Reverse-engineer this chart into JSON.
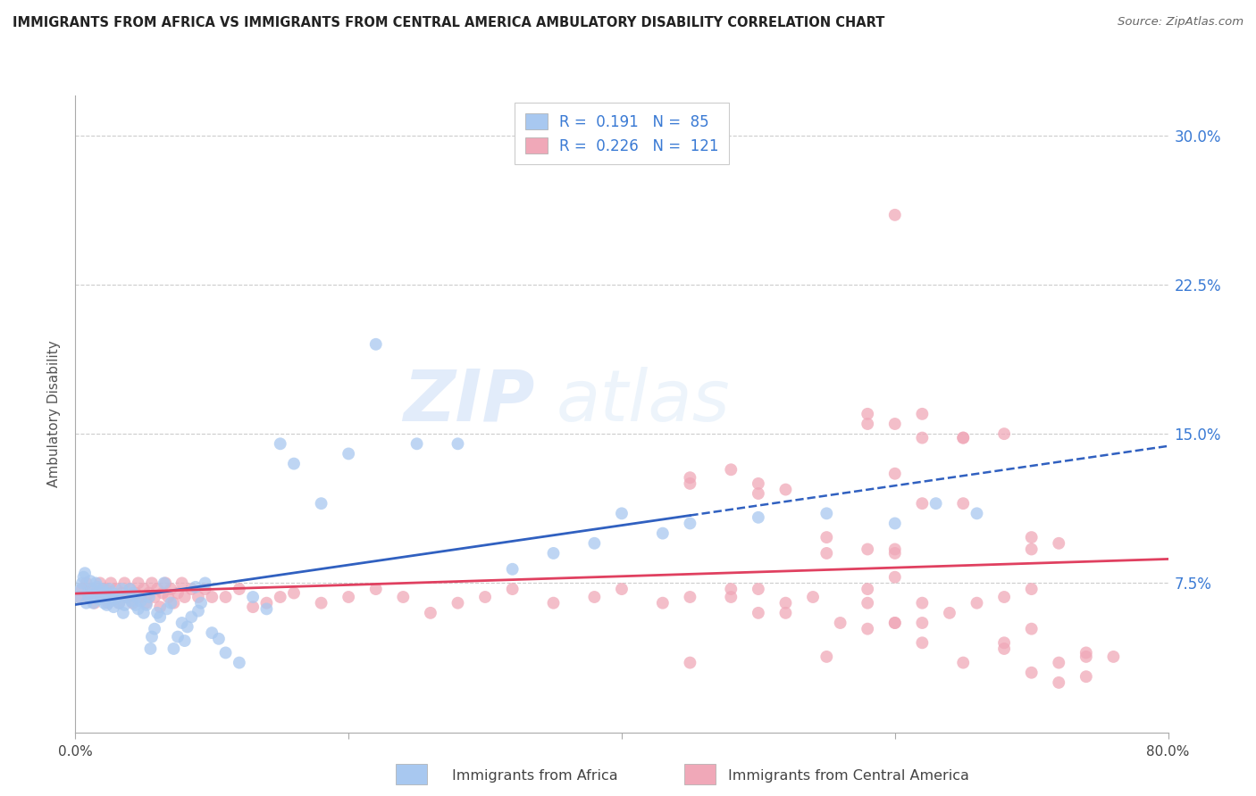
{
  "title": "IMMIGRANTS FROM AFRICA VS IMMIGRANTS FROM CENTRAL AMERICA AMBULATORY DISABILITY CORRELATION CHART",
  "source": "Source: ZipAtlas.com",
  "xlabel_africa": "Immigrants from Africa",
  "xlabel_central": "Immigrants from Central America",
  "ylabel": "Ambulatory Disability",
  "R_africa": 0.191,
  "N_africa": 85,
  "R_central": 0.226,
  "N_central": 121,
  "color_africa": "#a8c8f0",
  "color_central": "#f0a8b8",
  "color_africa_line": "#3060c0",
  "color_central_line": "#e04060",
  "xmin": 0.0,
  "xmax": 0.8,
  "ymin": 0.0,
  "ymax": 0.32,
  "yticks": [
    0.075,
    0.15,
    0.225,
    0.3
  ],
  "ytick_labels": [
    "7.5%",
    "15.0%",
    "22.5%",
    "30.0%"
  ],
  "xticks": [
    0.0,
    0.2,
    0.4,
    0.6,
    0.8
  ],
  "xtick_labels": [
    "0.0%",
    "",
    "",
    "",
    "80.0%"
  ],
  "watermark_zip": "ZIP",
  "watermark_atlas": "atlas",
  "africa_x": [
    0.002,
    0.004,
    0.005,
    0.006,
    0.007,
    0.008,
    0.009,
    0.01,
    0.011,
    0.012,
    0.013,
    0.014,
    0.015,
    0.016,
    0.017,
    0.018,
    0.019,
    0.02,
    0.021,
    0.022,
    0.023,
    0.024,
    0.025,
    0.026,
    0.027,
    0.028,
    0.029,
    0.03,
    0.032,
    0.034,
    0.035,
    0.036,
    0.038,
    0.04,
    0.041,
    0.042,
    0.044,
    0.045,
    0.046,
    0.048,
    0.05,
    0.052,
    0.054,
    0.055,
    0.056,
    0.058,
    0.06,
    0.062,
    0.065,
    0.067,
    0.07,
    0.072,
    0.075,
    0.078,
    0.08,
    0.082,
    0.085,
    0.088,
    0.09,
    0.092,
    0.095,
    0.1,
    0.105,
    0.11,
    0.12,
    0.13,
    0.14,
    0.15,
    0.16,
    0.18,
    0.2,
    0.22,
    0.25,
    0.28,
    0.32,
    0.35,
    0.38,
    0.4,
    0.43,
    0.45,
    0.5,
    0.55,
    0.6,
    0.63,
    0.66
  ],
  "africa_y": [
    0.068,
    0.072,
    0.075,
    0.078,
    0.08,
    0.065,
    0.07,
    0.068,
    0.076,
    0.072,
    0.065,
    0.069,
    0.075,
    0.073,
    0.067,
    0.071,
    0.068,
    0.072,
    0.065,
    0.07,
    0.064,
    0.068,
    0.072,
    0.066,
    0.07,
    0.063,
    0.067,
    0.068,
    0.065,
    0.072,
    0.06,
    0.064,
    0.068,
    0.072,
    0.066,
    0.07,
    0.064,
    0.068,
    0.062,
    0.066,
    0.06,
    0.064,
    0.068,
    0.042,
    0.048,
    0.052,
    0.06,
    0.058,
    0.075,
    0.062,
    0.065,
    0.042,
    0.048,
    0.055,
    0.046,
    0.053,
    0.058,
    0.073,
    0.061,
    0.065,
    0.075,
    0.05,
    0.047,
    0.04,
    0.035,
    0.068,
    0.062,
    0.145,
    0.135,
    0.115,
    0.14,
    0.195,
    0.145,
    0.145,
    0.082,
    0.09,
    0.095,
    0.11,
    0.1,
    0.105,
    0.108,
    0.11,
    0.105,
    0.115,
    0.11
  ],
  "central_x": [
    0.003,
    0.005,
    0.008,
    0.01,
    0.012,
    0.014,
    0.016,
    0.018,
    0.02,
    0.022,
    0.024,
    0.026,
    0.028,
    0.03,
    0.032,
    0.034,
    0.036,
    0.038,
    0.04,
    0.042,
    0.044,
    0.046,
    0.048,
    0.05,
    0.052,
    0.054,
    0.056,
    0.058,
    0.06,
    0.062,
    0.064,
    0.066,
    0.068,
    0.07,
    0.072,
    0.075,
    0.078,
    0.08,
    0.085,
    0.09,
    0.095,
    0.1,
    0.11,
    0.12,
    0.13,
    0.14,
    0.15,
    0.16,
    0.18,
    0.2,
    0.22,
    0.24,
    0.26,
    0.28,
    0.3,
    0.32,
    0.35,
    0.38,
    0.4,
    0.43,
    0.45,
    0.48,
    0.5,
    0.52,
    0.54,
    0.56,
    0.58,
    0.6,
    0.62,
    0.64,
    0.66,
    0.68,
    0.7,
    0.72,
    0.74,
    0.45,
    0.48,
    0.5,
    0.52,
    0.55,
    0.58,
    0.6,
    0.62,
    0.65,
    0.6,
    0.62,
    0.65,
    0.68,
    0.7,
    0.58,
    0.58,
    0.6,
    0.45,
    0.5,
    0.55,
    0.6,
    0.62,
    0.65,
    0.7,
    0.72,
    0.74,
    0.76,
    0.6,
    0.62,
    0.65,
    0.68,
    0.7,
    0.72,
    0.74,
    0.68,
    0.7,
    0.58,
    0.6,
    0.45,
    0.48,
    0.5,
    0.52,
    0.55,
    0.58,
    0.6,
    0.62
  ],
  "central_y": [
    0.068,
    0.072,
    0.075,
    0.068,
    0.072,
    0.065,
    0.07,
    0.075,
    0.068,
    0.072,
    0.065,
    0.075,
    0.068,
    0.072,
    0.065,
    0.07,
    0.075,
    0.068,
    0.072,
    0.065,
    0.07,
    0.075,
    0.068,
    0.072,
    0.065,
    0.07,
    0.075,
    0.068,
    0.072,
    0.063,
    0.07,
    0.075,
    0.068,
    0.072,
    0.065,
    0.07,
    0.075,
    0.068,
    0.072,
    0.068,
    0.072,
    0.068,
    0.068,
    0.072,
    0.063,
    0.065,
    0.068,
    0.07,
    0.065,
    0.068,
    0.072,
    0.068,
    0.06,
    0.065,
    0.068,
    0.072,
    0.065,
    0.068,
    0.072,
    0.065,
    0.068,
    0.072,
    0.06,
    0.065,
    0.068,
    0.055,
    0.072,
    0.078,
    0.065,
    0.06,
    0.065,
    0.068,
    0.072,
    0.035,
    0.038,
    0.128,
    0.132,
    0.12,
    0.122,
    0.098,
    0.092,
    0.092,
    0.115,
    0.115,
    0.155,
    0.16,
    0.148,
    0.15,
    0.098,
    0.155,
    0.16,
    0.13,
    0.125,
    0.125,
    0.09,
    0.09,
    0.055,
    0.035,
    0.03,
    0.025,
    0.04,
    0.038,
    0.26,
    0.148,
    0.148,
    0.042,
    0.092,
    0.095,
    0.028,
    0.045,
    0.052,
    0.052,
    0.055,
    0.035,
    0.068,
    0.072,
    0.06,
    0.038,
    0.065,
    0.055,
    0.045
  ]
}
